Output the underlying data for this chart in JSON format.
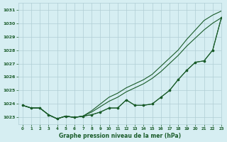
{
  "title": "Graphe pression niveau de la mer (hPa)",
  "bg_color": "#d6eef2",
  "grid_color": "#b0cdd4",
  "line_color": "#1a5c2a",
  "xlim": [
    -0.5,
    23
  ],
  "ylim": [
    1022.5,
    1031.5
  ],
  "yticks": [
    1023,
    1024,
    1025,
    1026,
    1027,
    1028,
    1029,
    1030,
    1031
  ],
  "xticks": [
    0,
    1,
    2,
    3,
    4,
    5,
    6,
    7,
    8,
    9,
    10,
    11,
    12,
    13,
    14,
    15,
    16,
    17,
    18,
    19,
    20,
    21,
    22,
    23
  ],
  "x": [
    0,
    1,
    2,
    3,
    4,
    5,
    6,
    7,
    8,
    9,
    10,
    11,
    12,
    13,
    14,
    15,
    16,
    17,
    18,
    19,
    20,
    21,
    22,
    23
  ],
  "line_upper1": [
    1023.9,
    1023.7,
    1023.7,
    1023.2,
    1022.9,
    1023.1,
    1023.0,
    1023.1,
    1023.5,
    1024.0,
    1024.5,
    1024.8,
    1025.2,
    1025.5,
    1025.8,
    1026.2,
    1026.8,
    1027.4,
    1028.0,
    1028.8,
    1029.5,
    1030.2,
    1030.6,
    1030.9
  ],
  "line_upper2": [
    1023.9,
    1023.7,
    1023.7,
    1023.2,
    1022.9,
    1023.1,
    1023.0,
    1023.1,
    1023.4,
    1023.8,
    1024.2,
    1024.5,
    1024.9,
    1025.2,
    1025.5,
    1025.9,
    1026.4,
    1027.0,
    1027.6,
    1028.3,
    1028.9,
    1029.5,
    1030.0,
    1030.4
  ],
  "line_lower1": [
    1023.9,
    1023.7,
    1023.7,
    1023.2,
    1022.9,
    1023.1,
    1023.0,
    1023.1,
    1023.2,
    1023.4,
    1023.7,
    1023.7,
    1024.3,
    1023.9,
    1023.9,
    1024.0,
    1024.5,
    1025.0,
    1025.8,
    1026.5,
    1027.1,
    1027.2,
    1028.0,
    1030.4
  ],
  "line_lower2": [
    1023.9,
    1023.7,
    1023.7,
    1023.2,
    1022.9,
    1023.1,
    1023.0,
    1023.1,
    1023.2,
    1023.4,
    1023.7,
    1023.7,
    1024.3,
    1023.9,
    1023.9,
    1024.0,
    1024.5,
    1025.0,
    1025.8,
    1026.5,
    1027.1,
    1027.2,
    1028.0,
    1030.4
  ]
}
